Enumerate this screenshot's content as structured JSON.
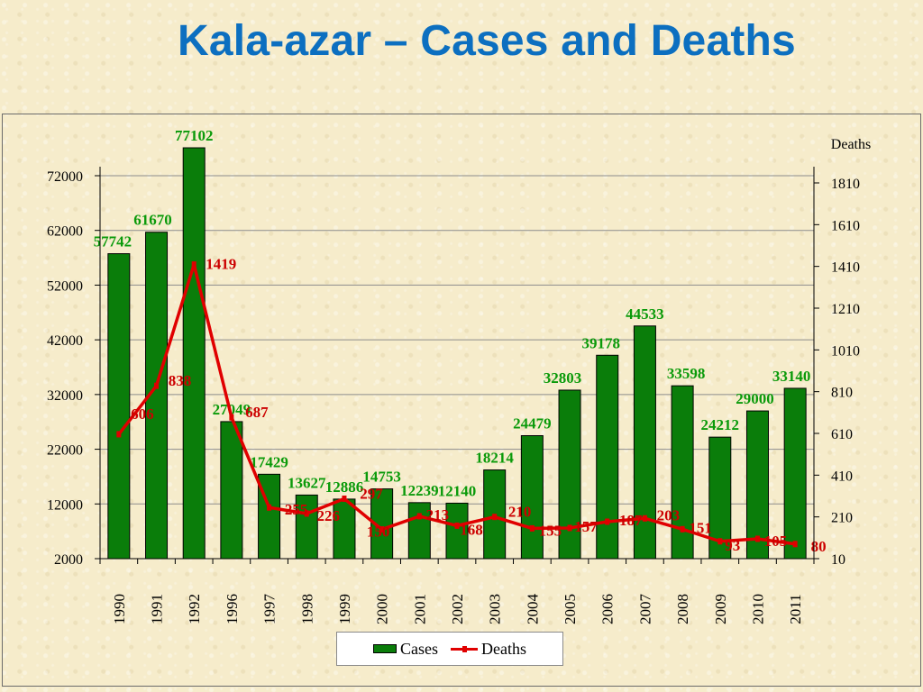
{
  "slide": {
    "title": "Kala-azar – Cases and Deaths"
  },
  "colors": {
    "title": "#0c6fc0",
    "bars": "#0a7d0a",
    "bar_labels": "#0a9a0a",
    "line": "#e00000",
    "line_labels": "#cc0000"
  },
  "chart_data": {
    "type": "bar",
    "title": "",
    "xlabel": "",
    "ylabel": "",
    "y2label": "Deaths",
    "categories": [
      "1990",
      "1991",
      "1992",
      "1996",
      "1997",
      "1998",
      "1999",
      "2000",
      "2001",
      "2002",
      "2003",
      "2004",
      "2005",
      "2006",
      "2007",
      "2008",
      "2009",
      "2010",
      "2011"
    ],
    "series": [
      {
        "name": "Cases",
        "type": "bar",
        "axis": "left",
        "values": [
          57742,
          61670,
          77102,
          27049,
          17429,
          13627,
          12886,
          14753,
          12239,
          12140,
          18214,
          24479,
          32803,
          39178,
          44533,
          33598,
          24212,
          29000,
          33140
        ]
      },
      {
        "name": "Deaths",
        "type": "line",
        "axis": "right",
        "values": [
          606,
          838,
          1419,
          687,
          255,
          226,
          297,
          150,
          213,
          168,
          210,
          155,
          157,
          187,
          203,
          151,
          93,
          105,
          80
        ]
      }
    ],
    "ylim": [
      2000,
      77102
    ],
    "yticks": [
      2000,
      12000,
      22000,
      32000,
      42000,
      52000,
      62000,
      72000
    ],
    "y2lim": [
      10,
      1810
    ],
    "y2ticks": [
      10,
      210,
      410,
      610,
      810,
      1010,
      1210,
      1410,
      1610,
      1810
    ],
    "grid": true,
    "legend": "bottom-center"
  }
}
